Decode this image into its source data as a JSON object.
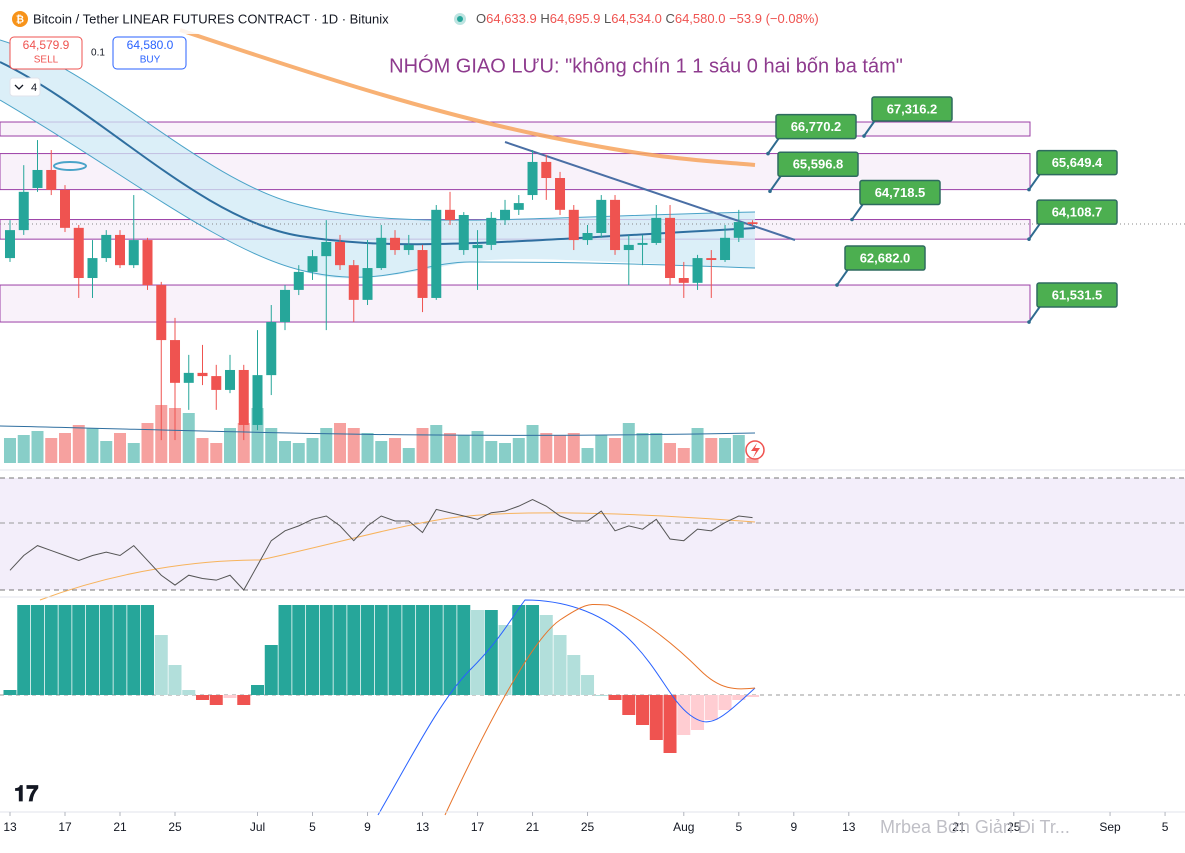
{
  "header": {
    "title": "Bitcoin / Tether LINEAR FUTURES CONTRACT · 1D · Bitunix",
    "ohlc": [
      {
        "key": "O",
        "value": "64,633.9"
      },
      {
        "key": "H",
        "value": "64,695.9"
      },
      {
        "key": "L",
        "value": "64,534.0"
      },
      {
        "key": "C",
        "value": "64,580.0"
      }
    ],
    "change": "−53.9 (−0.08%)",
    "sell": {
      "price": "64,579.9",
      "label": "SELL"
    },
    "spread": "0.1",
    "buy": {
      "price": "64,580.0",
      "label": "BUY"
    },
    "indicators_count": "4"
  },
  "watermark": "Mrbea Bơn Giản Đi Tr...",
  "chart_data": {
    "type": "candlestick",
    "annotation": "NHÓM GIAO LƯU: \"không chín 1 1 sáu 0 hai bốn ba tám\"",
    "open": [
      63520,
      64390,
      65700,
      66260,
      65640,
      64460,
      62900,
      63520,
      64240,
      63300,
      64080,
      62680,
      60970,
      59640,
      59950,
      59850,
      59420,
      60040,
      58330,
      59880,
      61530,
      62530,
      63090,
      63580,
      64020,
      63300,
      62220,
      63210,
      64150,
      63770,
      63770,
      62280,
      65020,
      63770,
      63830,
      63930,
      64700,
      65020,
      65480,
      66510,
      66010,
      65020,
      64080,
      64300,
      65330,
      63770,
      63930,
      63990,
      64770,
      62900,
      62750,
      63520,
      63460,
      64150,
      64633.9
    ],
    "high": [
      64700,
      66410,
      67190,
      66880,
      65790,
      64550,
      64080,
      64390,
      64390,
      65480,
      64150,
      62780,
      61660,
      60510,
      60820,
      60200,
      60510,
      60200,
      61280,
      62060,
      62680,
      63300,
      63770,
      64700,
      64240,
      63460,
      64080,
      64550,
      64390,
      64240,
      63930,
      65170,
      65580,
      64950,
      64390,
      64950,
      65330,
      65480,
      66880,
      66730,
      66200,
      65170,
      64550,
      65480,
      65480,
      64240,
      64240,
      65170,
      65170,
      63400,
      63620,
      63770,
      64550,
      65020,
      64695.9
    ],
    "low": [
      63400,
      64240,
      65580,
      65480,
      64330,
      62280,
      62280,
      63400,
      63210,
      63210,
      62530,
      57860,
      57860,
      58800,
      59570,
      58800,
      59320,
      57860,
      58170,
      59260,
      61280,
      62370,
      62840,
      61280,
      63150,
      61530,
      62060,
      63150,
      63620,
      63620,
      61840,
      62220,
      64550,
      63620,
      62530,
      63770,
      64550,
      64860,
      65330,
      65330,
      64860,
      63770,
      63930,
      64150,
      63620,
      62680,
      63300,
      63930,
      62680,
      62280,
      62530,
      62280,
      63400,
      64020,
      64534
    ],
    "close": [
      64390,
      65580,
      66260,
      65640,
      64460,
      62900,
      63520,
      64240,
      63300,
      64080,
      62680,
      60970,
      59640,
      59950,
      59850,
      59420,
      60040,
      58330,
      59880,
      61530,
      62530,
      63090,
      63580,
      64020,
      63300,
      62220,
      63210,
      64150,
      63770,
      63930,
      62280,
      65020,
      64700,
      64860,
      63930,
      64770,
      65020,
      65230,
      66510,
      66010,
      65020,
      64080,
      64300,
      65330,
      63770,
      63930,
      63990,
      64770,
      62900,
      62750,
      63520,
      63460,
      64150,
      64640,
      64580
    ],
    "up_color": "#26a69a",
    "down_color": "#ef5350",
    "volume": [
      25,
      28,
      32,
      25,
      30,
      38,
      35,
      22,
      30,
      20,
      40,
      58,
      55,
      50,
      25,
      20,
      35,
      40,
      55,
      35,
      22,
      20,
      25,
      35,
      40,
      35,
      30,
      22,
      25,
      15,
      35,
      38,
      30,
      28,
      32,
      22,
      20,
      25,
      38,
      30,
      28,
      30,
      15,
      28,
      25,
      40,
      30,
      30,
      20,
      15,
      35,
      25,
      25,
      28,
      5
    ],
    "volume_ylim": [
      0,
      100
    ],
    "rsi": [
      42,
      51,
      57,
      54,
      51,
      48,
      51,
      53,
      51,
      57,
      48,
      39,
      33,
      39,
      37,
      36,
      39,
      30,
      45,
      60,
      66,
      69,
      73,
      75,
      69,
      60,
      69,
      75,
      72,
      72,
      65,
      79,
      77,
      75,
      73,
      77,
      78,
      81,
      85,
      81,
      75,
      72,
      72,
      78,
      66,
      69,
      67,
      73,
      61,
      60,
      67,
      66,
      71,
      75,
      74
    ],
    "rsi_ylim": [
      28.8,
      96.9
    ],
    "macd_histogram": [
      5,
      90,
      90,
      90,
      90,
      90,
      90,
      90,
      90,
      90,
      90,
      60,
      30,
      5,
      -5,
      -10,
      -3,
      -10,
      10,
      50,
      90,
      90,
      90,
      90,
      90,
      90,
      90,
      90,
      90,
      90,
      90,
      90,
      90,
      90,
      85,
      85,
      70,
      90,
      90,
      80,
      60,
      40,
      20,
      0,
      -5,
      -20,
      -30,
      -45,
      -58,
      -40,
      -35,
      -25,
      -15,
      -5,
      -2
    ],
    "macd_ylim": [
      -100,
      100
    ],
    "levels": [
      {
        "value": 67316.2,
        "label": "67,316.2"
      },
      {
        "value": 66770.2,
        "label": "66,770.2"
      },
      {
        "value": 65596.8,
        "label": "65,596.8"
      },
      {
        "value": 65649.4,
        "label": "65,649.4"
      },
      {
        "value": 64718.5,
        "label": "64,718.5"
      },
      {
        "value": 64108.7,
        "label": "64,108.7"
      },
      {
        "value": 62682.0,
        "label": "62,682.0"
      },
      {
        "value": 61531.5,
        "label": "61,531.5"
      }
    ],
    "xlim": [
      -0.727,
      85.45
    ],
    "ylim": [
      57085,
      71546
    ],
    "xticks": [
      {
        "value": 0,
        "label": "13"
      },
      {
        "value": 4,
        "label": "17"
      },
      {
        "value": 8,
        "label": "21"
      },
      {
        "value": 12,
        "label": "25"
      },
      {
        "value": 18,
        "label": "Jul"
      },
      {
        "value": 22,
        "label": "5"
      },
      {
        "value": 26,
        "label": "9"
      },
      {
        "value": 30,
        "label": "13"
      },
      {
        "value": 34,
        "label": "17"
      },
      {
        "value": 38,
        "label": "21"
      },
      {
        "value": 42,
        "label": "25"
      },
      {
        "value": 49,
        "label": "Aug"
      },
      {
        "value": 53,
        "label": "5"
      },
      {
        "value": 57,
        "label": "9"
      },
      {
        "value": 61,
        "label": "13"
      },
      {
        "value": 69,
        "label": "21"
      },
      {
        "value": 73,
        "label": "25"
      },
      {
        "value": 80,
        "label": "Sep"
      },
      {
        "value": 84,
        "label": "5"
      }
    ]
  }
}
